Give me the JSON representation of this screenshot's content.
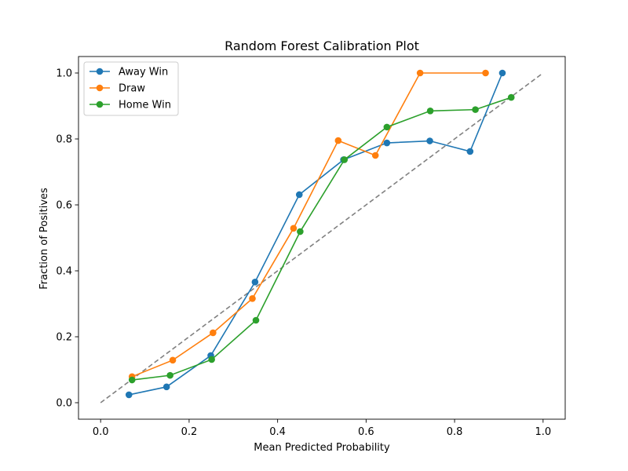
{
  "chart_data": {
    "type": "line",
    "title": "Random Forest Calibration Plot",
    "xlabel": "Mean Predicted Probability",
    "ylabel": "Fraction of Positives",
    "xlim": [
      -0.05,
      1.05
    ],
    "ylim": [
      -0.05,
      1.05
    ],
    "xticks": [
      0.0,
      0.2,
      0.4,
      0.6,
      0.8,
      1.0
    ],
    "yticks": [
      0.0,
      0.2,
      0.4,
      0.6,
      0.8,
      1.0
    ],
    "xtick_labels": [
      "0.0",
      "0.2",
      "0.4",
      "0.6",
      "0.8",
      "1.0"
    ],
    "ytick_labels": [
      "0.0",
      "0.2",
      "0.4",
      "0.6",
      "0.8",
      "1.0"
    ],
    "grid": false,
    "legend_position": "top-left",
    "reference_line": {
      "x": [
        0.0,
        1.0
      ],
      "y": [
        0.0,
        1.0
      ],
      "style": "dashed",
      "color": "#808080"
    },
    "series": [
      {
        "name": "Away Win",
        "color": "#1f77b4",
        "x": [
          0.064,
          0.149,
          0.249,
          0.349,
          0.449,
          0.549,
          0.647,
          0.744,
          0.835,
          0.908
        ],
        "y": [
          0.024,
          0.048,
          0.143,
          0.366,
          0.631,
          0.737,
          0.788,
          0.794,
          0.762,
          1.0
        ]
      },
      {
        "name": "Draw",
        "color": "#ff7f0e",
        "x": [
          0.071,
          0.163,
          0.254,
          0.343,
          0.436,
          0.537,
          0.621,
          0.722,
          0.87
        ],
        "y": [
          0.079,
          0.129,
          0.212,
          0.316,
          0.529,
          0.795,
          0.75,
          1.0,
          1.0
        ]
      },
      {
        "name": "Home Win",
        "color": "#2ca02c",
        "x": [
          0.071,
          0.157,
          0.251,
          0.351,
          0.451,
          0.551,
          0.647,
          0.745,
          0.847,
          0.928
        ],
        "y": [
          0.069,
          0.083,
          0.131,
          0.25,
          0.519,
          0.737,
          0.836,
          0.885,
          0.889,
          0.926
        ]
      }
    ]
  }
}
